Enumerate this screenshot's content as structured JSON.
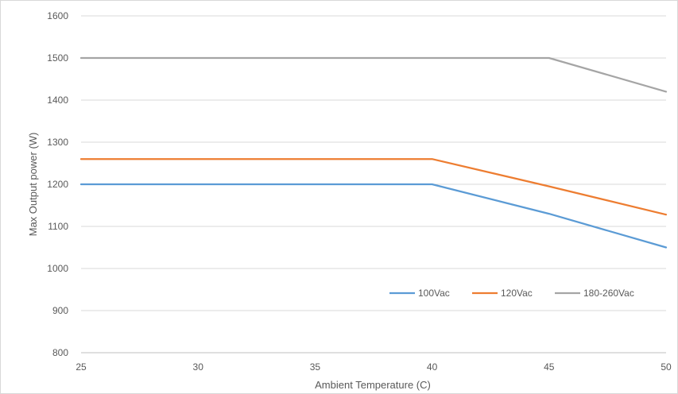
{
  "chart_data": {
    "type": "line",
    "xlabel": "Ambient Temperature (C)",
    "ylabel": "Max Output power (W)",
    "xlim": [
      25,
      50
    ],
    "ylim": [
      800,
      1600
    ],
    "x_ticks": [
      25,
      30,
      35,
      40,
      45,
      50
    ],
    "y_ticks": [
      800,
      900,
      1000,
      1100,
      1200,
      1300,
      1400,
      1500,
      1600
    ],
    "grid": "horizontal",
    "legend_position": "bottom-right",
    "series": [
      {
        "name": "100Vac",
        "color": "#5b9bd5",
        "x": [
          25,
          40,
          45,
          50
        ],
        "y": [
          1200,
          1200,
          1130,
          1050
        ]
      },
      {
        "name": "120Vac",
        "color": "#ed7d31",
        "x": [
          25,
          40,
          45,
          50
        ],
        "y": [
          1260,
          1260,
          1195,
          1128
        ]
      },
      {
        "name": "180-260Vac",
        "color": "#a5a5a5",
        "x": [
          25,
          45,
          50
        ],
        "y": [
          1500,
          1500,
          1420
        ]
      }
    ]
  }
}
